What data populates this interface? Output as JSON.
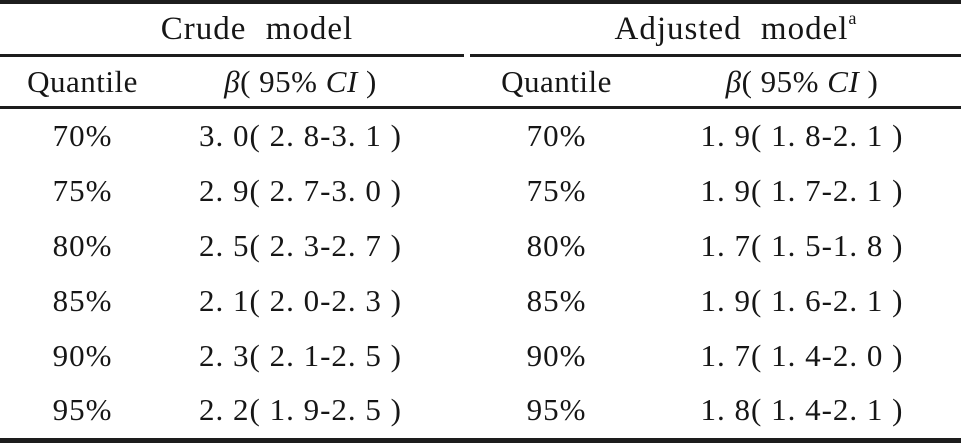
{
  "colors": {
    "text": "#161616",
    "rule": "#1d1d1d",
    "background": "#ffffff"
  },
  "table": {
    "crude": {
      "title": "Crude model",
      "sup": ""
    },
    "adjusted": {
      "title": "Adjusted model",
      "sup": "a"
    },
    "quantile_header": "Quantile",
    "beta_header": {
      "beta": "β",
      "pre": "( 95% ",
      "ci": "CI",
      "post": " )"
    },
    "rows": [
      {
        "quantile": "70%",
        "crude": "3. 0( 2. 8-3. 1 )",
        "adjusted": "1. 9( 1. 8-2. 1 )"
      },
      {
        "quantile": "75%",
        "crude": "2. 9( 2. 7-3. 0 )",
        "adjusted": "1. 9( 1. 7-2. 1 )"
      },
      {
        "quantile": "80%",
        "crude": "2. 5( 2. 3-2. 7 )",
        "adjusted": "1. 7( 1. 5-1. 8 )"
      },
      {
        "quantile": "85%",
        "crude": "2. 1( 2. 0-2. 3 )",
        "adjusted": "1. 9( 1. 6-2. 1 )"
      },
      {
        "quantile": "90%",
        "crude": "2. 3( 2. 1-2. 5 )",
        "adjusted": "1. 7( 1. 4-2. 0 )"
      },
      {
        "quantile": "95%",
        "crude": "2. 2( 1. 9-2. 5 )",
        "adjusted": "1. 8( 1. 4-2. 1 )"
      }
    ]
  },
  "chart_data": {
    "type": "table",
    "categories": [
      "70%",
      "75%",
      "80%",
      "85%",
      "90%",
      "95%"
    ],
    "series": [
      {
        "name": "Crude model β (95% CI)",
        "values": [
          3.0,
          2.9,
          2.5,
          2.1,
          2.3,
          2.2
        ],
        "ci_low": [
          2.8,
          2.7,
          2.3,
          2.0,
          2.1,
          1.9
        ],
        "ci_high": [
          3.1,
          3.0,
          2.7,
          2.3,
          2.5,
          2.5
        ]
      },
      {
        "name": "Adjusted model β (95% CI)",
        "values": [
          1.9,
          1.9,
          1.7,
          1.9,
          1.7,
          1.8
        ],
        "ci_low": [
          1.8,
          1.7,
          1.5,
          1.6,
          1.4,
          1.4
        ],
        "ci_high": [
          2.1,
          2.1,
          1.8,
          2.1,
          2.0,
          2.1
        ]
      }
    ]
  }
}
